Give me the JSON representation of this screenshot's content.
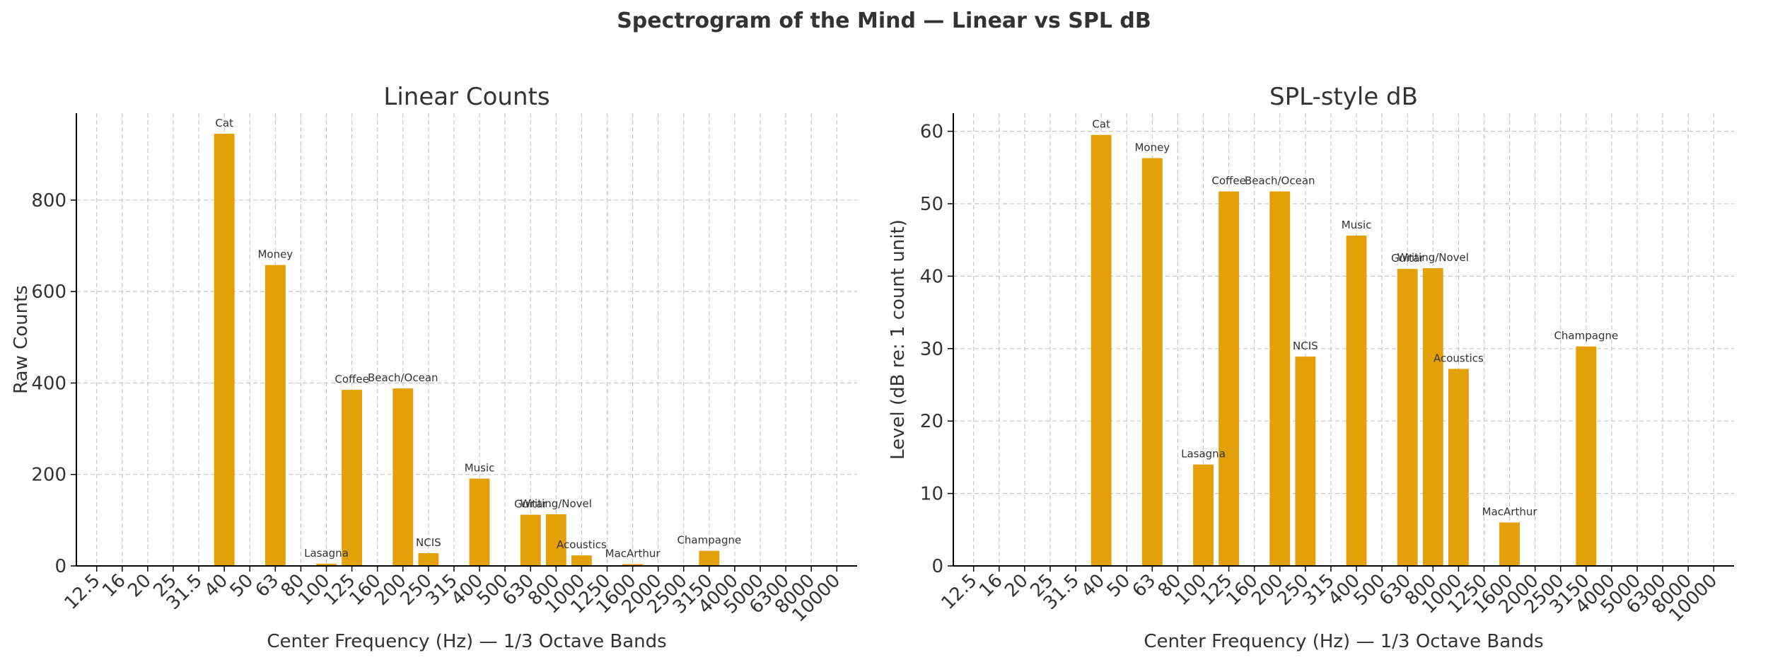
{
  "suptitle": "Spectrogram of the Mind — Linear vs SPL dB",
  "chart_data": [
    {
      "type": "bar",
      "title": "Linear Counts",
      "xlabel": "Center Frequency (Hz) — 1/3 Octave Bands",
      "ylabel": "Raw Counts",
      "ylim": [
        0,
        990
      ],
      "yticks": [
        0,
        200,
        400,
        600,
        800
      ],
      "grid": true,
      "color": "#E3A008",
      "categories": [
        "12.5",
        "16",
        "20",
        "25",
        "31.5",
        "40",
        "50",
        "63",
        "80",
        "100",
        "125",
        "160",
        "200",
        "250",
        "315",
        "400",
        "500",
        "630",
        "800",
        "1000",
        "1250",
        "1600",
        "2000",
        "2500",
        "3150",
        "4000",
        "5000",
        "6300",
        "8000",
        "10000"
      ],
      "values": [
        0,
        0,
        0,
        0,
        0,
        945,
        0,
        658,
        0,
        5,
        385,
        0,
        388,
        28,
        0,
        191,
        0,
        112,
        113,
        23,
        0,
        4,
        0,
        0,
        33,
        0,
        0,
        0,
        0,
        0
      ],
      "labels": [
        "",
        "",
        "",
        "",
        "",
        "Cat",
        "",
        "Money",
        "",
        "Lasagna",
        "Coffee",
        "",
        "Beach/Ocean",
        "NCIS",
        "",
        "Music",
        "",
        "Guitar",
        "Writing/Novel",
        "Acoustics",
        "",
        "MacArthur",
        "",
        "",
        "Champagne",
        "",
        "",
        "",
        "",
        ""
      ]
    },
    {
      "type": "bar",
      "title": "SPL-style dB",
      "xlabel": "Center Frequency (Hz) — 1/3 Octave Bands",
      "ylabel": "Level (dB re: 1 count unit)",
      "ylim": [
        0,
        62.5
      ],
      "yticks": [
        0,
        10,
        20,
        30,
        40,
        50,
        60
      ],
      "grid": true,
      "color": "#E3A008",
      "categories": [
        "12.5",
        "16",
        "20",
        "25",
        "31.5",
        "40",
        "50",
        "63",
        "80",
        "100",
        "125",
        "160",
        "200",
        "250",
        "315",
        "400",
        "500",
        "630",
        "800",
        "1000",
        "1250",
        "1600",
        "2000",
        "2500",
        "3150",
        "4000",
        "5000",
        "6300",
        "8000",
        "10000"
      ],
      "values": [
        0,
        0,
        0,
        0,
        0,
        59.5,
        0,
        56.3,
        0,
        14.0,
        51.7,
        0,
        51.7,
        28.9,
        0,
        45.6,
        0,
        41.0,
        41.1,
        27.2,
        0,
        6.0,
        0,
        0,
        30.3,
        0,
        0,
        0,
        0,
        0
      ],
      "labels": [
        "",
        "",
        "",
        "",
        "",
        "Cat",
        "",
        "Money",
        "",
        "Lasagna",
        "Coffee",
        "",
        "Beach/Ocean",
        "NCIS",
        "",
        "Music",
        "",
        "Guitar",
        "Writing/Novel",
        "Acoustics",
        "",
        "MacArthur",
        "",
        "",
        "Champagne",
        "",
        "",
        "",
        "",
        ""
      ]
    }
  ]
}
